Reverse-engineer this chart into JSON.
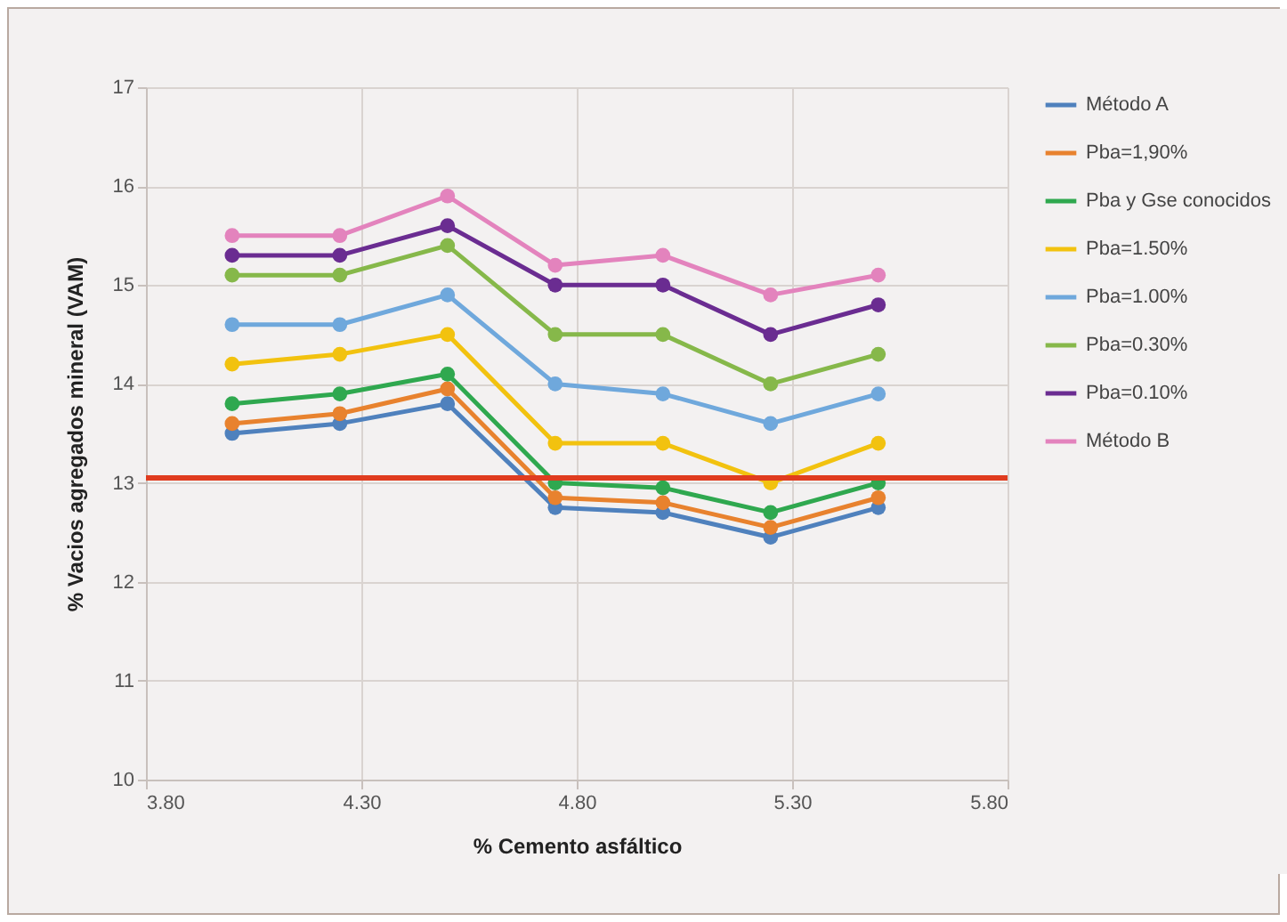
{
  "chart_data": {
    "type": "line",
    "xlabel": "% Cemento asfáltico",
    "ylabel": "% Vacios agregados mineral (VAM)",
    "x": [
      4.0,
      4.25,
      4.5,
      4.75,
      5.0,
      5.25,
      5.5
    ],
    "series": [
      {
        "name": "Método A",
        "color": "#4f81bd",
        "values": [
          13.5,
          13.6,
          13.8,
          12.75,
          12.7,
          12.45,
          12.75
        ]
      },
      {
        "name": "Pba=1,90%",
        "color": "#e8822e",
        "values": [
          13.6,
          13.7,
          13.95,
          12.85,
          12.8,
          12.55,
          12.85
        ]
      },
      {
        "name": "Pba y Gse conocidos",
        "color": "#2fa84f",
        "values": [
          13.8,
          13.9,
          14.1,
          13.0,
          12.95,
          12.7,
          13.0
        ]
      },
      {
        "name": "Pba=1.50%",
        "color": "#f2c20f",
        "values": [
          14.2,
          14.3,
          14.5,
          13.4,
          13.4,
          13.0,
          13.4
        ]
      },
      {
        "name": "Pba=1.00%",
        "color": "#6fa8dc",
        "values": [
          14.6,
          14.6,
          14.9,
          14.0,
          13.9,
          13.6,
          13.9
        ]
      },
      {
        "name": "Pba=0.30%",
        "color": "#86b84a",
        "values": [
          15.1,
          15.1,
          15.4,
          14.5,
          14.5,
          14.0,
          14.3
        ]
      },
      {
        "name": "Pba=0.10%",
        "color": "#6a2c91",
        "values": [
          15.3,
          15.3,
          15.6,
          15.0,
          15.0,
          14.5,
          14.8
        ]
      },
      {
        "name": "Método B",
        "color": "#e383bd",
        "values": [
          15.5,
          15.5,
          15.9,
          15.2,
          15.3,
          14.9,
          15.1
        ]
      }
    ],
    "xlim": [
      3.8,
      5.8
    ],
    "xticks": [
      {
        "value": 3.8,
        "label": "3.80"
      },
      {
        "value": 4.3,
        "label": "4.30"
      },
      {
        "value": 4.8,
        "label": "4.80"
      },
      {
        "value": 5.3,
        "label": "5.30"
      },
      {
        "value": 5.8,
        "label": "5.80"
      }
    ],
    "ylim": [
      10,
      17
    ],
    "yticks": [
      10,
      11,
      12,
      13,
      14,
      15,
      16,
      17
    ],
    "ref_lines": [
      {
        "axis": "y",
        "value": 13.05,
        "color": "#e03c1f"
      }
    ],
    "grid": true,
    "legend": "right",
    "marker": "circle",
    "line_style": "solid"
  }
}
